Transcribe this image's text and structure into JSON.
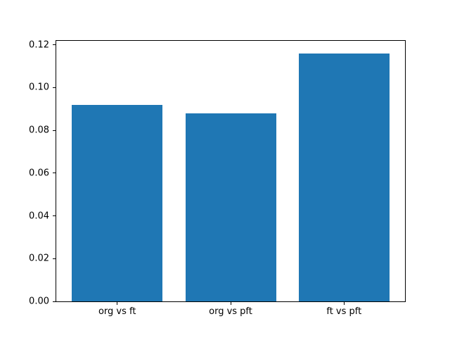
{
  "figure": {
    "background": "#ffffff",
    "bar_color": "#1f77b4",
    "axis_color": "#000000",
    "text_color": "#000000"
  },
  "chart_data": {
    "type": "bar",
    "title": "",
    "xlabel": "",
    "ylabel": "",
    "categories": [
      "org vs ft",
      "org vs pft",
      "ft vs pft"
    ],
    "values": [
      0.092,
      0.088,
      0.116
    ],
    "bar_width": 0.8,
    "xlim": [
      -0.5375,
      2.5375
    ],
    "ylim": [
      0,
      0.1218
    ],
    "ytick_values": [
      0.0,
      0.02,
      0.04,
      0.06,
      0.08,
      0.1,
      0.12
    ],
    "ytick_labels": [
      "0.00",
      "0.02",
      "0.04",
      "0.06",
      "0.08",
      "0.10",
      "0.12"
    ],
    "grid": false,
    "legend": null
  }
}
